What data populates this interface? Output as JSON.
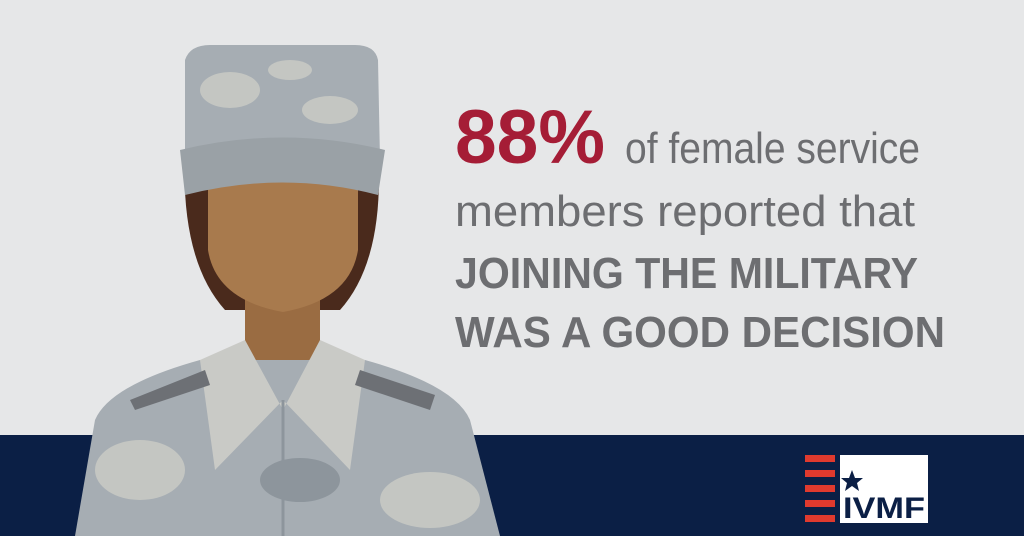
{
  "headline": {
    "stat": "88%",
    "line1": "of female service",
    "line2": "members reported that",
    "line3": "JOINING THE MILITARY",
    "line4": "WAS A GOOD DECISION"
  },
  "logo": {
    "text": "IVMF"
  }
}
